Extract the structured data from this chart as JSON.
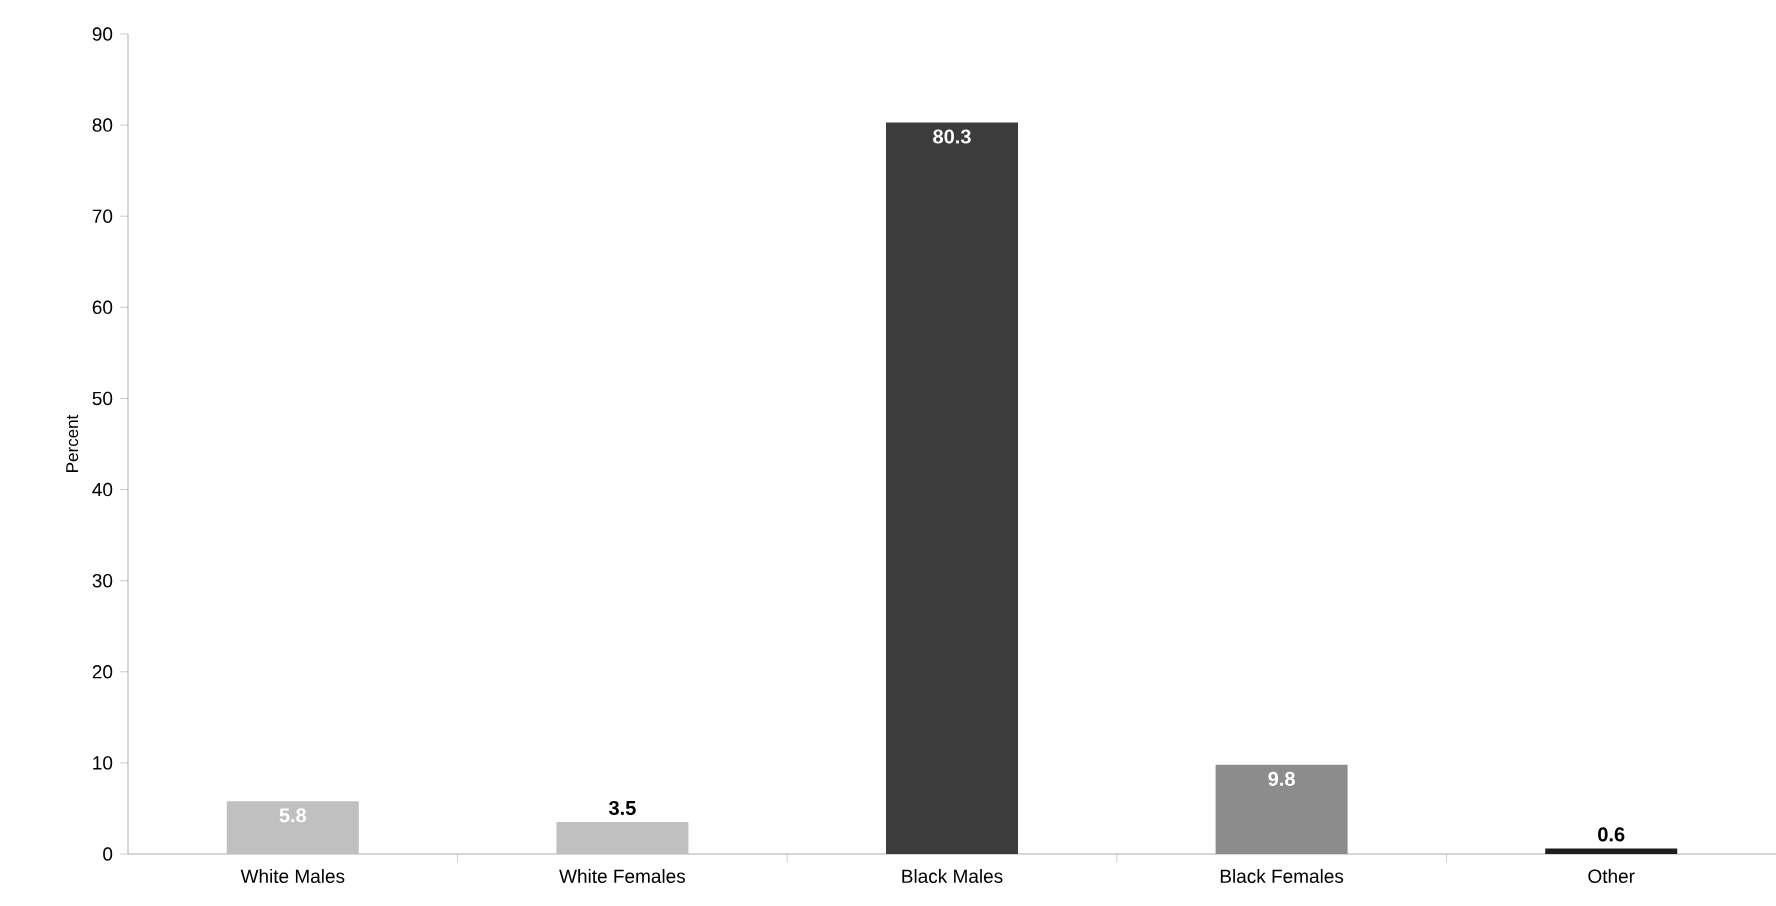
{
  "chart_data": {
    "type": "bar",
    "ylabel": "Percent",
    "categories": [
      "White Males",
      "White Females",
      "Black Males",
      "Black Females",
      "Other"
    ],
    "values": [
      5.8,
      3.5,
      80.3,
      9.8,
      0.6
    ],
    "colors": [
      "#c0c0c0",
      "#c0c0c0",
      "#3c3c3c",
      "#8c8c8c",
      "#1e1e1e"
    ],
    "ylim": [
      0,
      90
    ],
    "yticks": [
      0,
      10,
      20,
      30,
      40,
      50,
      60,
      70,
      80,
      90
    ],
    "data_labels": true,
    "grid": false
  }
}
